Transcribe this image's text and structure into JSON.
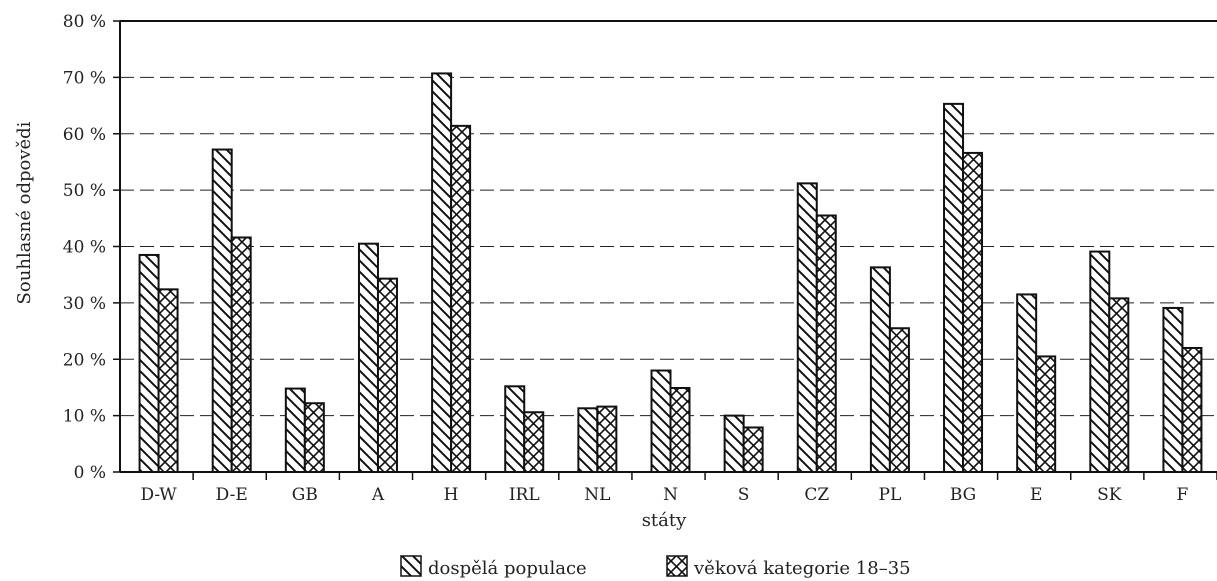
{
  "chart_data": {
    "type": "bar",
    "xlabel": "státy",
    "ylabel": "Souhlasné odpovědi",
    "ylim": [
      0,
      80
    ],
    "yticks": [
      0,
      10,
      20,
      30,
      40,
      50,
      60,
      70,
      80
    ],
    "ytick_suffix": " %",
    "grid": "horizontal dashed",
    "legend_position": "bottom-center",
    "categories": [
      "D-W",
      "D-E",
      "GB",
      "A",
      "H",
      "IRL",
      "NL",
      "N",
      "S",
      "CZ",
      "PL",
      "BG",
      "E",
      "SK",
      "F"
    ],
    "series": [
      {
        "name": "dospělá populace",
        "pattern": "diagonal-hatch",
        "values": [
          38.5,
          57.2,
          14.8,
          40.5,
          70.7,
          15.2,
          11.3,
          18.0,
          10.0,
          51.2,
          36.3,
          65.3,
          31.5,
          39.1,
          29.1
        ]
      },
      {
        "name": "věková kategorie 18–35",
        "pattern": "cross-hatch",
        "values": [
          32.4,
          41.6,
          12.2,
          34.3,
          61.4,
          10.6,
          11.6,
          14.9,
          7.9,
          45.5,
          25.5,
          56.6,
          20.5,
          30.8,
          22.0
        ]
      }
    ]
  }
}
